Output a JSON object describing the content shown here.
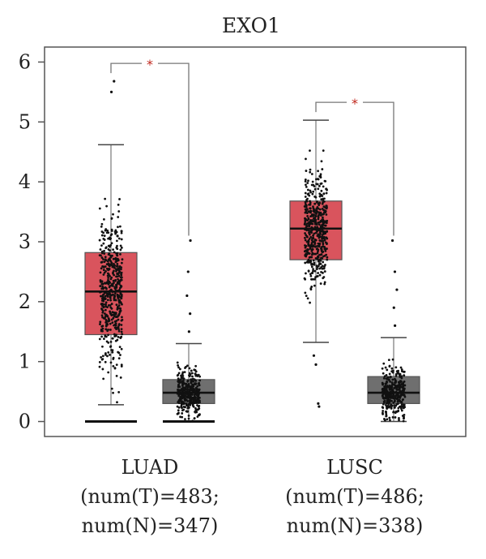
{
  "chart_data": {
    "type": "box",
    "title": "EXO1",
    "xlabel": "",
    "ylabel": "",
    "ylim": [
      -0.25,
      6.25
    ],
    "yticks": [
      0,
      1,
      2,
      3,
      4,
      5,
      6
    ],
    "grid": false,
    "significance_marker": "*",
    "colors": {
      "tumor": "#d9545d",
      "normal": "#6f6f6f",
      "points": "#111111",
      "marker": "#c0261c"
    },
    "groups": [
      {
        "name": "LUAD",
        "label_lines": [
          "LUAD",
          "(num(T)=483;",
          "num(N)=347)"
        ],
        "significant": true,
        "tumor": {
          "n": 483,
          "whisker_low": 0.28,
          "q1": 1.45,
          "median": 2.17,
          "q3": 2.82,
          "whisker_high": 4.62,
          "outliers": [
            5.5,
            5.68,
            0.0
          ]
        },
        "normal": {
          "n": 347,
          "whisker_low": 0.0,
          "q1": 0.3,
          "median": 0.48,
          "q3": 0.7,
          "whisker_high": 1.3,
          "outliers": [
            1.5,
            1.8,
            2.1,
            2.5,
            3.02,
            0.0
          ]
        }
      },
      {
        "name": "LUSC",
        "label_lines": [
          "LUSC",
          "(num(T)=486;",
          "num(N)=338)"
        ],
        "significant": true,
        "tumor": {
          "n": 486,
          "whisker_low": 1.32,
          "q1": 2.7,
          "median": 3.22,
          "q3": 3.68,
          "whisker_high": 5.03,
          "outliers": [
            0.25,
            0.3,
            0.95,
            1.1
          ]
        },
        "normal": {
          "n": 338,
          "whisker_low": 0.0,
          "q1": 0.3,
          "median": 0.48,
          "q3": 0.75,
          "whisker_high": 1.4,
          "outliers": [
            1.6,
            1.9,
            2.2,
            2.5,
            3.02
          ]
        }
      }
    ]
  }
}
